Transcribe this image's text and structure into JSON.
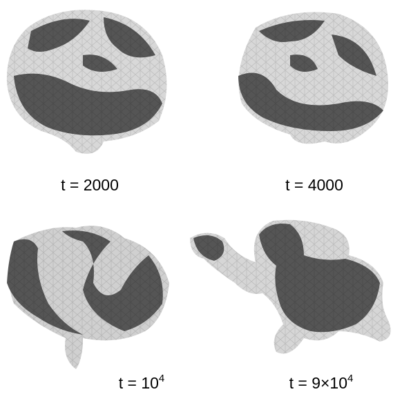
{
  "panels": [
    {
      "label": "t = 2000"
    },
    {
      "label": "t = 4000"
    },
    {
      "label": "t = 10",
      "exponent": "4"
    },
    {
      "label": "t = 9×10",
      "exponent": "4"
    }
  ]
}
